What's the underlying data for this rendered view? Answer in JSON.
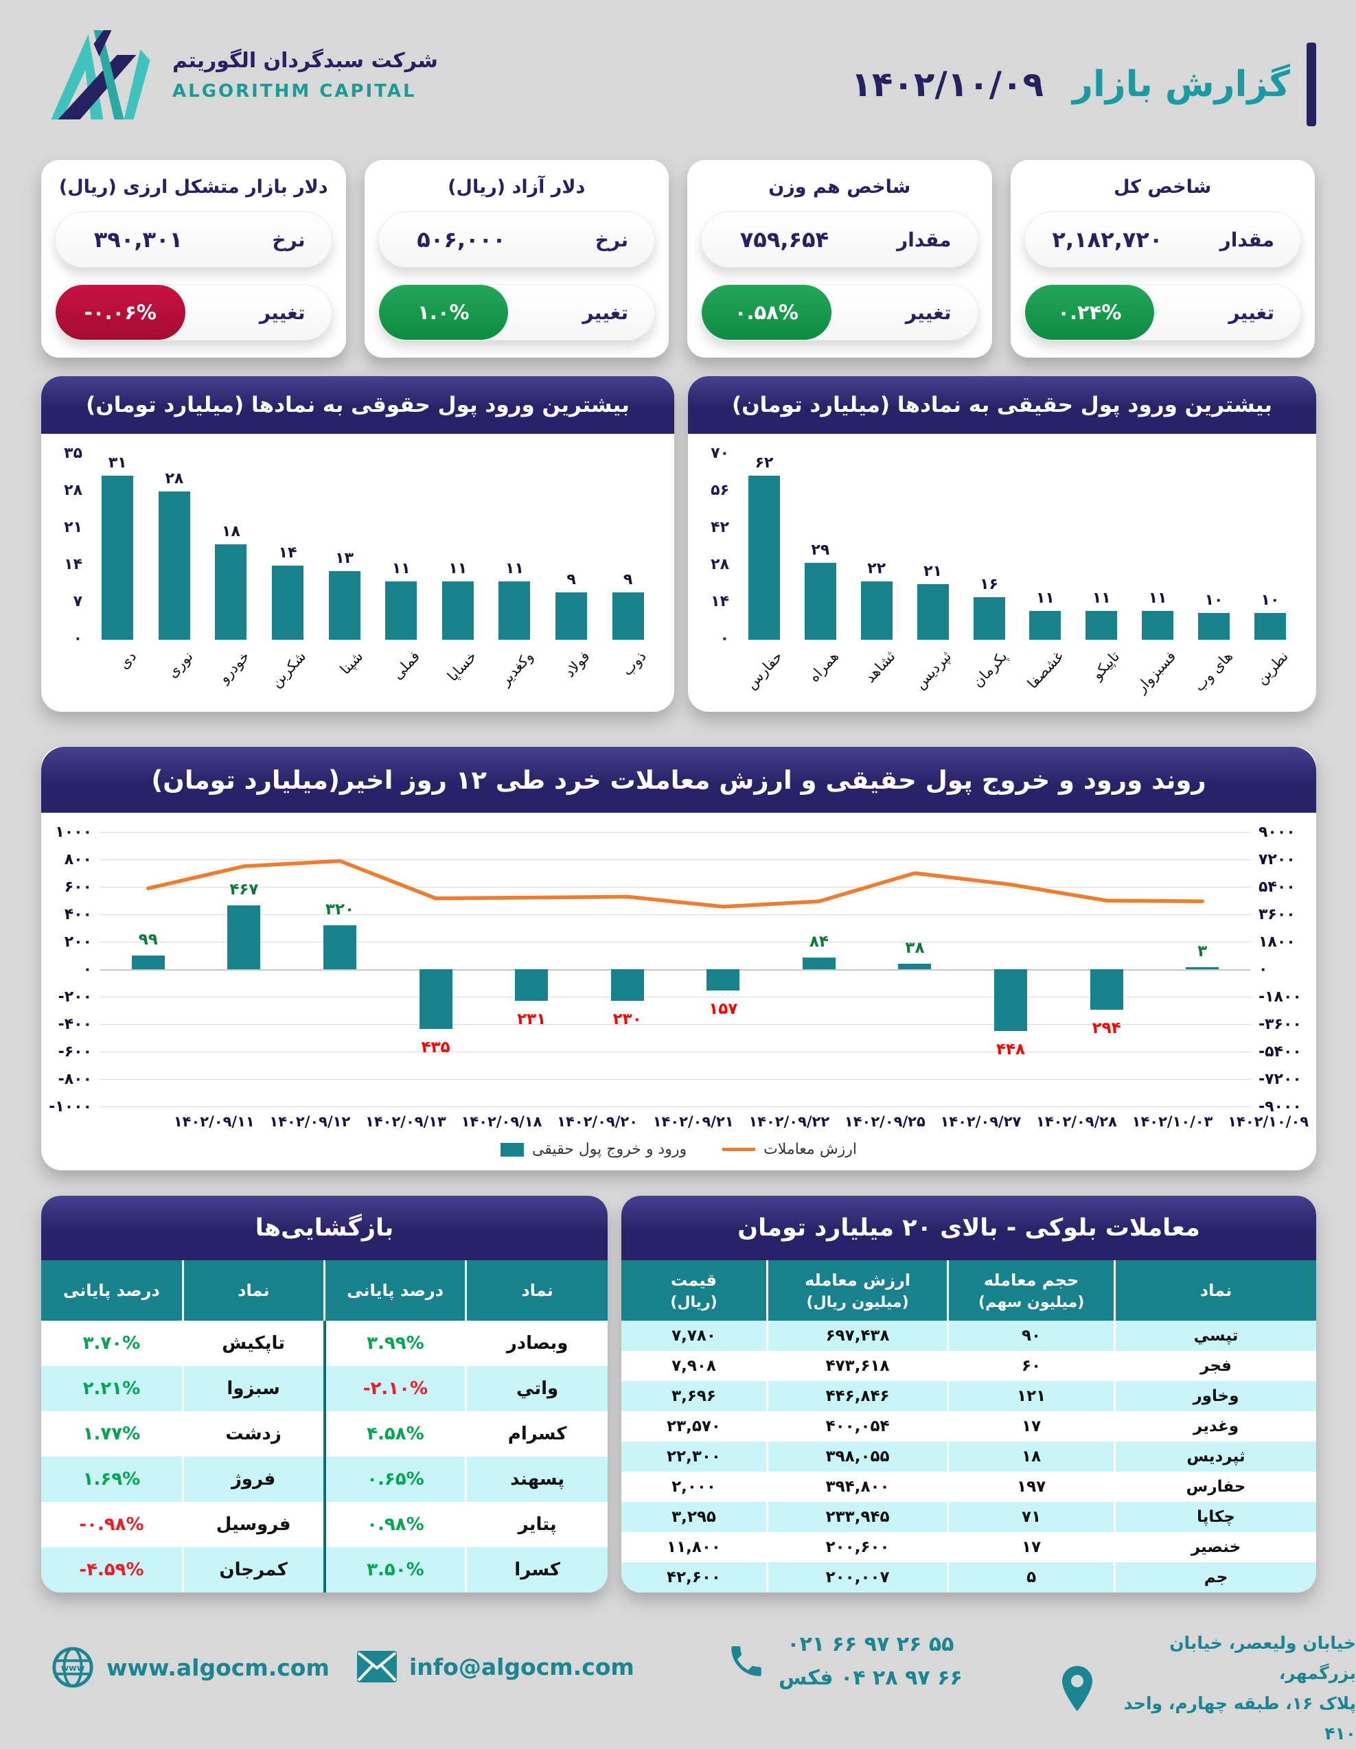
{
  "colors": {
    "navy": "#262262",
    "teal": "#17828B",
    "teal_bright": "#1A9AA2",
    "orange": "#ED7D31",
    "green_badge": "#179A4F",
    "red_badge": "#C00D3B",
    "green_text": "#00A651",
    "red_text": "#EE1C25",
    "cyan_row": "#C9F5F9",
    "page_bg": "#D8D8D8"
  },
  "header": {
    "report_title": "گزارش بازار",
    "report_date": "۱۴۰۲/۱۰/۰۹",
    "company_name_fa": "شرکت سبدگردان الگوریتم",
    "company_name_en": "ALGORITHM CAPITAL"
  },
  "stat_cards": [
    {
      "title": "شاخص کل",
      "value_label": "مقدار",
      "value": "۲,۱۸۲,۷۲۰",
      "change_label": "تغییر",
      "change": "۰.۲۴%",
      "direction": "up"
    },
    {
      "title": "شاخص هم وزن",
      "value_label": "مقدار",
      "value": "۷۵۹,۶۵۴",
      "change_label": "تغییر",
      "change": "۰.۵۸%",
      "direction": "up"
    },
    {
      "title": "دلار آزاد (ریال)",
      "value_label": "نرخ",
      "value": "۵۰۶,۰۰۰",
      "change_label": "تغییر",
      "change": "۱.۰%",
      "direction": "up"
    },
    {
      "title": "دلار بازار متشکل ارزی (ریال)",
      "value_label": "نرخ",
      "value": "۳۹۰,۳۰۱",
      "change_label": "تغییر",
      "change": "-۰.۰۶%",
      "direction": "down"
    }
  ],
  "chart_data": [
    {
      "type": "bar",
      "title": "بیشترین ورود پول حقوقی به نمادها (میلیارد تومان)",
      "categories": [
        "دی",
        "نوری",
        "خودرو",
        "شکربن",
        "شپنا",
        "فملی",
        "خساپا",
        "وکغدیر",
        "فولاد",
        "ذوب"
      ],
      "values": [
        31,
        28,
        18,
        14,
        13,
        11,
        11,
        11,
        9,
        9
      ],
      "values_fa": [
        "۳۱",
        "۲۸",
        "۱۸",
        "۱۴",
        "۱۳",
        "۱۱",
        "۱۱",
        "۱۱",
        "۹",
        "۹"
      ],
      "ylim": [
        0,
        35
      ],
      "yticks": [
        35,
        28,
        21,
        14,
        7,
        0
      ],
      "yticks_fa": [
        "۳۵",
        "۲۸",
        "۲۱",
        "۱۴",
        "۷",
        "۰"
      ],
      "grid": false,
      "legend": "none",
      "ylabel": "",
      "xlabel": ""
    },
    {
      "type": "bar",
      "title": "بیشترین ورود پول حقیقی به نمادها (میلیارد تومان)",
      "categories": [
        "حفارس",
        "همراه",
        "ثشاهد",
        "ثپردیس",
        "پکرمان",
        "غشصفا",
        "تاپیکو",
        "فسبزوار",
        "های وب",
        "نطرین"
      ],
      "values": [
        62,
        29,
        22,
        21,
        16,
        11,
        11,
        11,
        10,
        10
      ],
      "values_fa": [
        "۶۲",
        "۲۹",
        "۲۲",
        "۲۱",
        "۱۶",
        "۱۱",
        "۱۱",
        "۱۱",
        "۱۰",
        "۱۰"
      ],
      "ylim": [
        0,
        70
      ],
      "yticks": [
        70,
        56,
        42,
        28,
        14,
        0
      ],
      "yticks_fa": [
        "۷۰",
        "۵۶",
        "۴۲",
        "۲۸",
        "۱۴",
        "۰"
      ],
      "grid": false,
      "legend": "none",
      "ylabel": "",
      "xlabel": ""
    },
    {
      "type": "combo",
      "title": "روند ورود و خروج پول حقیقی و ارزش معاملات خرد طی ۱۲ روز اخیر(میلیارد تومان)",
      "categories": [
        "۱۴۰۲/۰۹/۱۱",
        "۱۴۰۲/۰۹/۱۲",
        "۱۴۰۲/۰۹/۱۳",
        "۱۴۰۲/۰۹/۱۸",
        "۱۴۰۲/۰۹/۲۰",
        "۱۴۰۲/۰۹/۲۱",
        "۱۴۰۲/۰۹/۲۲",
        "۱۴۰۲/۰۹/۲۵",
        "۱۴۰۲/۰۹/۲۷",
        "۱۴۰۲/۰۹/۲۸",
        "۱۴۰۲/۱۰/۰۳",
        "۱۴۰۲/۱۰/۰۹"
      ],
      "bar_series": {
        "name": "ورود و خروج پول حقیقی",
        "values": [
          99,
          467,
          320,
          -435,
          -231,
          -230,
          -157,
          84,
          38,
          -448,
          -294,
          3
        ],
        "labels_fa": [
          "۹۹",
          "۴۶۷",
          "۳۲۰",
          "۴۳۵",
          "۲۳۱",
          "۲۳۰",
          "۱۵۷",
          "۸۴",
          "۳۸",
          "۴۴۸",
          "۲۹۴",
          "۳"
        ]
      },
      "line_series": {
        "name": "ارزش معاملات",
        "values": [
          5300,
          6750,
          7100,
          4650,
          4700,
          4750,
          4100,
          4450,
          6300,
          5550,
          4500,
          4450
        ]
      },
      "left_ylim": [
        -1000,
        1000
      ],
      "right_ylim": [
        -9000,
        9000
      ],
      "left_yticks_fa": [
        "۱۰۰۰",
        "۸۰۰",
        "۶۰۰",
        "۴۰۰",
        "۲۰۰",
        "۰",
        "-۲۰۰",
        "-۴۰۰",
        "-۶۰۰",
        "-۸۰۰",
        "-۱۰۰۰"
      ],
      "right_yticks_fa": [
        "۹۰۰۰",
        "۷۲۰۰",
        "۵۴۰۰",
        "۳۶۰۰",
        "۱۸۰۰",
        "۰",
        "-۱۸۰۰",
        "-۳۶۰۰",
        "-۵۴۰۰",
        "-۷۲۰۰",
        "-۹۰۰۰"
      ],
      "grid": true,
      "legend": "bottom"
    }
  ],
  "reopenings": {
    "title": "بازگشایی‌ها",
    "col_symbol": "نماد",
    "col_pct": "درصد پایانی",
    "rows": [
      {
        "symbol_r": "وبصادر",
        "pct_r": "۳.۹۹%",
        "dir_r": "up",
        "symbol_l": "تاپکیش",
        "pct_l": "۳.۷۰%",
        "dir_l": "up"
      },
      {
        "symbol_r": "واتي",
        "pct_r": "-۲.۱۰%",
        "dir_r": "down",
        "symbol_l": "سبزوا",
        "pct_l": "۲.۲۱%",
        "dir_l": "up"
      },
      {
        "symbol_r": "کسرام",
        "pct_r": "۴.۵۸%",
        "dir_r": "up",
        "symbol_l": "زدشت",
        "pct_l": "۱.۷۷%",
        "dir_l": "up"
      },
      {
        "symbol_r": "پسهند",
        "pct_r": "۰.۶۵%",
        "dir_r": "up",
        "symbol_l": "فروژ",
        "pct_l": "۱.۶۹%",
        "dir_l": "up"
      },
      {
        "symbol_r": "پتایر",
        "pct_r": "۰.۹۸%",
        "dir_r": "up",
        "symbol_l": "فروسیل",
        "pct_l": "-۰.۹۸%",
        "dir_l": "down"
      },
      {
        "symbol_r": "کسرا",
        "pct_r": "۳.۵۰%",
        "dir_r": "up",
        "symbol_l": "کمرجان",
        "pct_l": "-۴.۵۹%",
        "dir_l": "down"
      }
    ]
  },
  "block_trades": {
    "title": "معاملات بلوکی - بالای ۲۰ میلیارد تومان",
    "headers": [
      {
        "l1": "نماد",
        "l2": ""
      },
      {
        "l1": "حجم معامله",
        "l2": "(میلیون سهم)"
      },
      {
        "l1": "ارزش معامله",
        "l2": "(میلیون ریال)"
      },
      {
        "l1": "قیمت",
        "l2": "(ریال)"
      }
    ],
    "rows": [
      [
        "تپسي",
        "۹۰",
        "۶۹۷,۴۳۸",
        "۷,۷۸۰"
      ],
      [
        "فجر",
        "۶۰",
        "۴۷۳,۶۱۸",
        "۷,۹۰۸"
      ],
      [
        "وخاور",
        "۱۲۱",
        "۴۴۶,۸۴۶",
        "۳,۶۹۶"
      ],
      [
        "وغدیر",
        "۱۷",
        "۴۰۰,۰۵۴",
        "۲۳,۵۷۰"
      ],
      [
        "ثپردیس",
        "۱۸",
        "۳۹۸,۰۵۵",
        "۲۲,۳۰۰"
      ],
      [
        "حفارس",
        "۱۹۷",
        "۳۹۴,۸۰۰",
        "۲,۰۰۰"
      ],
      [
        "چکاپا",
        "۷۱",
        "۲۳۳,۹۴۵",
        "۳,۲۹۵"
      ],
      [
        "خنصیر",
        "۱۷",
        "۲۰۰,۶۰۰",
        "۱۱,۸۰۰"
      ],
      [
        "جم",
        "۵",
        "۲۰۰,۰۰۷",
        "۴۲,۶۰۰"
      ]
    ]
  },
  "footer": {
    "website": "www.algocm.com",
    "email": "info@algocm.com",
    "phone": "۰۲۱ ۶۶ ۹۷ ۲۶ ۵۵",
    "fax": "۶۶ ۹۷ ۲۸ ۰۴ فکس",
    "address_line1": "خیابان ولیعصر، خیابان بزرگمهر،",
    "address_line2": "پلاک ۱۶، طبقه چهارم، واحد ۴۱۰"
  }
}
